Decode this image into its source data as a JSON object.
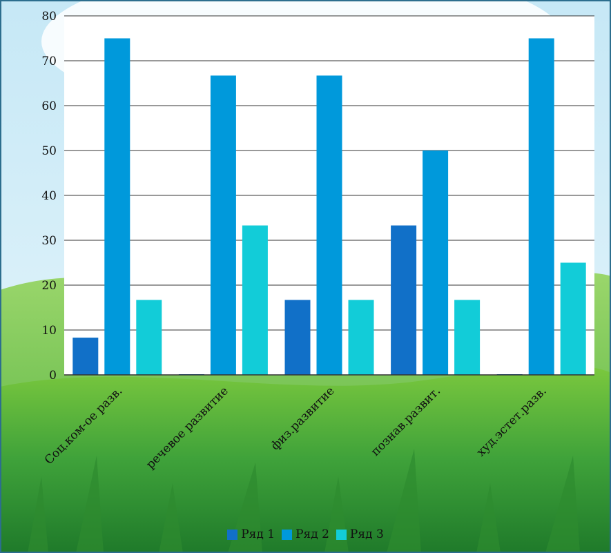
{
  "chart_data": {
    "type": "bar",
    "categories": [
      "Соц.ком-ое разв.",
      "речевое развитие",
      "физ.развитие",
      "познав.развит.",
      "худ.эстет.разв."
    ],
    "series": [
      {
        "name": "Ряд 1",
        "color": "#1170C8",
        "values": [
          8.3,
          0,
          16.7,
          33.3,
          0
        ]
      },
      {
        "name": "Ряд 2",
        "color": "#0099DB",
        "values": [
          75,
          66.7,
          66.7,
          50,
          75
        ]
      },
      {
        "name": "Ряд 3",
        "color": "#12CCD8",
        "values": [
          16.7,
          33.3,
          16.7,
          16.7,
          25
        ]
      }
    ],
    "yticks": [
      "0",
      "10",
      "20",
      "30",
      "40",
      "50",
      "60",
      "70",
      "80"
    ],
    "ylim": [
      0,
      80
    ],
    "grid": true,
    "legend": "bottom"
  },
  "colors": {
    "plot_background": "#FFFFFF",
    "sky": "#D4EEF9",
    "grass": "#3FA23A",
    "gridline": "#333333"
  }
}
